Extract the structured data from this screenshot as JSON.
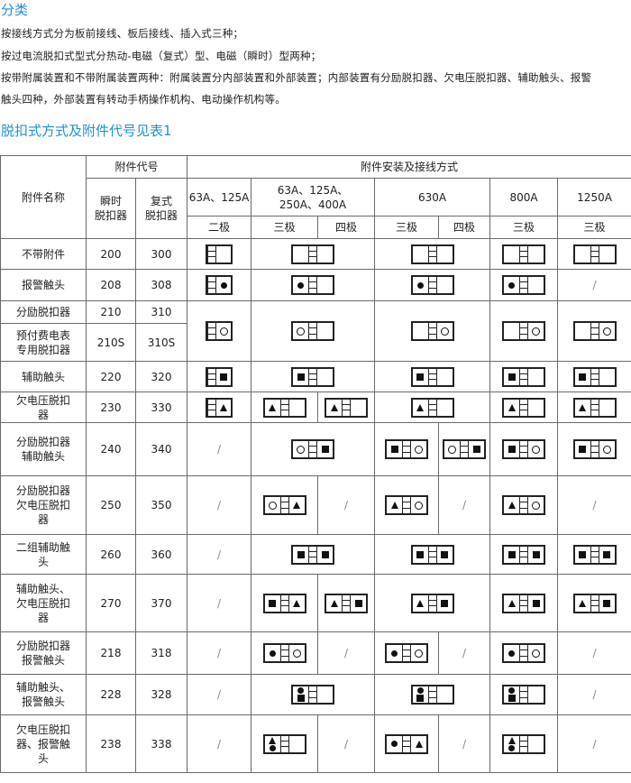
{
  "heading": "分类",
  "paragraphs": [
    "按接线方式分为板前接线、板后接线、插入式三种；",
    "按过电流脱扣式型式分热动-电磁（复式）型、电磁（瞬时）型两种；",
    "按带附属装置和不带附属装置两种：附属装置分内部装置和外部装置；内部装置有分励脱扣器、欠电压脱扣器、辅助触头、报警",
    "触头四种，外部装置有转动手柄操作机构、电动操作机构等。"
  ],
  "table_title": "脱扣式方式及附件代号见表1",
  "colors": {
    "accent": "#1e90d8"
  },
  "table": {
    "h_name": "附件名称",
    "h_code": "附件代号",
    "h_inst": [
      "瞬时",
      "脱扣器"
    ],
    "h_comp": [
      "复式",
      "脱扣器"
    ],
    "h_install": "附件安装及接线方式",
    "frames": [
      "63A、125A",
      [
        "63A、125A、",
        "250A、400A"
      ],
      "630A",
      "800A",
      "1250A"
    ],
    "poles": [
      "二极",
      "三极",
      "四极",
      "三极",
      "四极",
      "三极",
      "三极"
    ],
    "rows": [
      {
        "name": [
          "不带附件"
        ],
        "inst": "200",
        "comp": "300",
        "cells": [
          {
            "d": [
              "|",
              ""
            ]
          },
          {
            "span": 2,
            "d": [
              "",
              "|",
              ""
            ]
          },
          {
            "span": 2,
            "d": [
              "",
              "|",
              ""
            ]
          },
          {
            "d": [
              "",
              "|",
              ""
            ]
          },
          {
            "d": [
              "",
              "|",
              ""
            ]
          }
        ]
      },
      {
        "name": [
          "报警触头"
        ],
        "inst": "208",
        "comp": "308",
        "cells": [
          {
            "d": [
              "|",
              "dot"
            ]
          },
          {
            "span": 2,
            "d": [
              "dot",
              "|",
              ""
            ]
          },
          {
            "span": 2,
            "d": [
              "dot",
              "|",
              ""
            ]
          },
          {
            "d": [
              "dot",
              "|",
              ""
            ]
          },
          {
            "d": "/"
          }
        ]
      },
      {
        "name": [
          "分励脱扣器"
        ],
        "inst": "210",
        "comp": "310",
        "rowspan": 2,
        "cells": [
          {
            "d": [
              "|",
              "circle"
            ]
          },
          {
            "span": 2,
            "d": [
              "circle",
              "|",
              ""
            ]
          },
          {
            "span": 2,
            "d": [
              "",
              "|",
              "circle"
            ]
          },
          {
            "d": [
              "",
              "|",
              "circle"
            ]
          },
          {
            "d": [
              "",
              "|",
              "circle"
            ]
          }
        ]
      },
      {
        "name": [
          "预付费电表",
          "专用脱扣器"
        ],
        "inst": "210S",
        "comp": "310S",
        "cells": []
      },
      {
        "name": [
          "辅助触头"
        ],
        "inst": "220",
        "comp": "320",
        "cells": [
          {
            "d": [
              "|",
              "square"
            ]
          },
          {
            "span": 2,
            "d": [
              "square",
              "|",
              ""
            ]
          },
          {
            "span": 2,
            "d": [
              "square",
              "|",
              ""
            ]
          },
          {
            "d": [
              "square",
              "|",
              ""
            ]
          },
          {
            "d": [
              "square",
              "|",
              ""
            ]
          }
        ]
      },
      {
        "name": [
          "欠电压脱扣",
          "器"
        ],
        "inst": "230",
        "comp": "330",
        "cells": [
          {
            "d": [
              "|",
              "triangle"
            ]
          },
          {
            "d": [
              "triangle",
              "|",
              ""
            ]
          },
          {
            "d": [
              "triangle",
              "|",
              ""
            ]
          },
          {
            "span": 2,
            "d": [
              "triangle",
              "|",
              ""
            ]
          },
          {
            "d": [
              "triangle",
              "|",
              ""
            ]
          },
          {
            "d": [
              "triangle",
              "|",
              ""
            ]
          }
        ]
      },
      {
        "name": [
          "分励脱扣器",
          "辅助触头"
        ],
        "inst": "240",
        "comp": "340",
        "cells": [
          {
            "d": "/"
          },
          {
            "span": 2,
            "d": [
              "circle",
              "|",
              "square"
            ]
          },
          {
            "d": [
              "square",
              "|",
              "circle"
            ]
          },
          {
            "d": [
              "circle",
              "|",
              "square"
            ]
          },
          {
            "d": [
              "square",
              "|",
              "circle"
            ]
          },
          {
            "d": [
              "square",
              "|",
              "circle"
            ]
          }
        ]
      },
      {
        "name": [
          "分励脱扣器",
          "欠电压脱扣",
          "器"
        ],
        "inst": "250",
        "comp": "350",
        "cells": [
          {
            "d": "/"
          },
          {
            "d": [
              "circle",
              "|",
              "triangle"
            ]
          },
          {
            "d": "/"
          },
          {
            "d": [
              "triangle",
              "|",
              "circle"
            ]
          },
          {
            "d": "/"
          },
          {
            "d": [
              "triangle",
              "|",
              "circle"
            ]
          },
          {
            "d": "/"
          }
        ]
      },
      {
        "name": [
          "二组辅助触",
          "头"
        ],
        "inst": "260",
        "comp": "360",
        "cells": [
          {
            "d": "/"
          },
          {
            "span": 2,
            "d": [
              "square",
              "|",
              "square"
            ]
          },
          {
            "span": 2,
            "d": [
              "square",
              "|",
              "square"
            ]
          },
          {
            "d": [
              "square",
              "|",
              "square"
            ]
          },
          {
            "d": [
              "square",
              "|",
              "square"
            ]
          }
        ]
      },
      {
        "name": [
          "辅助触头、",
          "欠电压脱扣",
          "器"
        ],
        "inst": "270",
        "comp": "370",
        "cells": [
          {
            "d": "/"
          },
          {
            "d": [
              "square",
              "|",
              "triangle"
            ]
          },
          {
            "d": [
              "triangle",
              "|",
              "square"
            ]
          },
          {
            "span": 2,
            "d": [
              "triangle",
              "|",
              "square"
            ]
          },
          {
            "d": [
              "triangle",
              "|",
              "square"
            ]
          },
          {
            "d": [
              "triangle",
              "|",
              "square"
            ]
          }
        ]
      },
      {
        "name": [
          "分励脱扣器",
          "报警触头"
        ],
        "inst": "218",
        "comp": "318",
        "cells": [
          {
            "d": "/"
          },
          {
            "d": [
              "dot",
              "|",
              "circle"
            ]
          },
          {
            "d": "/"
          },
          {
            "d": [
              "dot",
              "|",
              "circle"
            ]
          },
          {
            "d": "/"
          },
          {
            "d": [
              "dot",
              "|",
              "circle"
            ]
          },
          {
            "d": "/"
          }
        ]
      },
      {
        "name": [
          "辅助触头、",
          "报警触头"
        ],
        "inst": "228",
        "comp": "328",
        "cells": [
          {
            "d": "/"
          },
          {
            "span": 2,
            "d": [
              "dot+square",
              "|",
              ""
            ]
          },
          {
            "span": 2,
            "d": [
              "dot+square",
              "|",
              ""
            ]
          },
          {
            "d": [
              "dot+square",
              "|",
              ""
            ]
          },
          {
            "d": "/"
          }
        ]
      },
      {
        "name": [
          "欠电压脱扣",
          "器、报警触",
          "头"
        ],
        "inst": "238",
        "comp": "338",
        "cells": [
          {
            "d": "/"
          },
          {
            "d": [
              "triangle+dot",
              "|",
              ""
            ]
          },
          {
            "d": "/"
          },
          {
            "d": [
              "dot",
              "|",
              "triangle"
            ]
          },
          {
            "d": "/"
          },
          {
            "d": [
              "triangle+dot",
              "|",
              ""
            ]
          },
          {
            "d": "/"
          }
        ]
      }
    ]
  }
}
